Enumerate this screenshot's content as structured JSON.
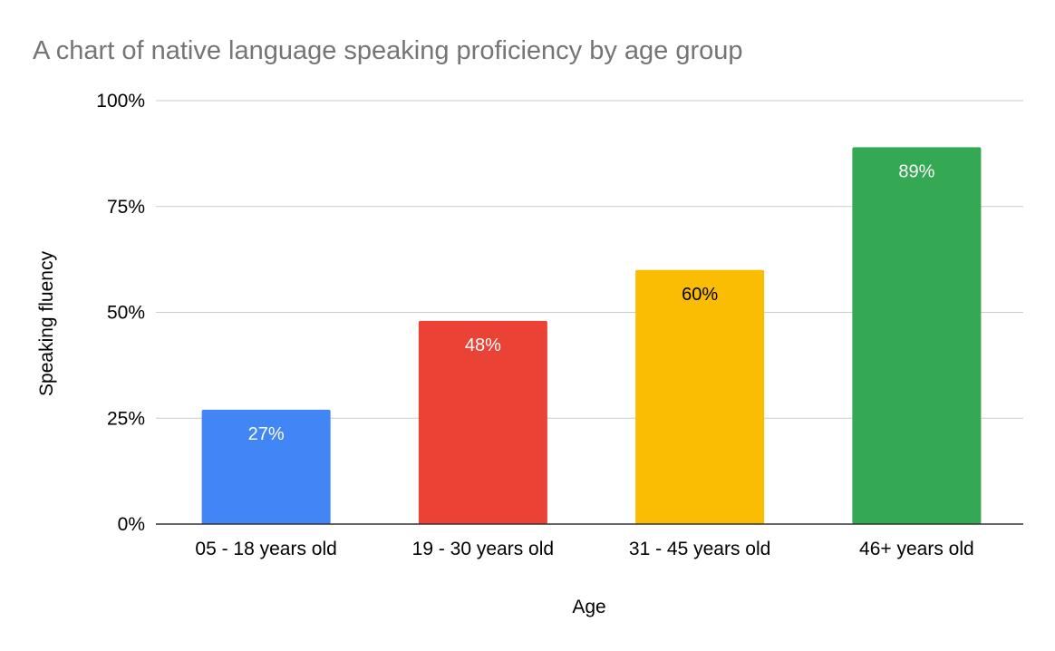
{
  "chart_data": {
    "type": "bar",
    "title": "A chart of native language speaking proficiency by age group",
    "xlabel": "Age",
    "ylabel": "Speaking fluency",
    "categories": [
      "05 - 18 years old",
      "19 - 30 years old",
      "31 - 45 years old",
      "46+ years old"
    ],
    "values": [
      27,
      48,
      60,
      89
    ],
    "data_labels": [
      "27%",
      "48%",
      "60%",
      "89%"
    ],
    "bar_colors": [
      "#4285f4",
      "#ea4335",
      "#fbbc04",
      "#34a853"
    ],
    "label_colors": [
      "#ffffff",
      "#ffffff",
      "#000000",
      "#ffffff"
    ],
    "ylim": [
      0,
      100
    ],
    "yticks": [
      0,
      25,
      50,
      75,
      100
    ],
    "ytick_labels": [
      "0%",
      "25%",
      "50%",
      "75%",
      "100%"
    ],
    "grid": true,
    "legend": "none"
  }
}
